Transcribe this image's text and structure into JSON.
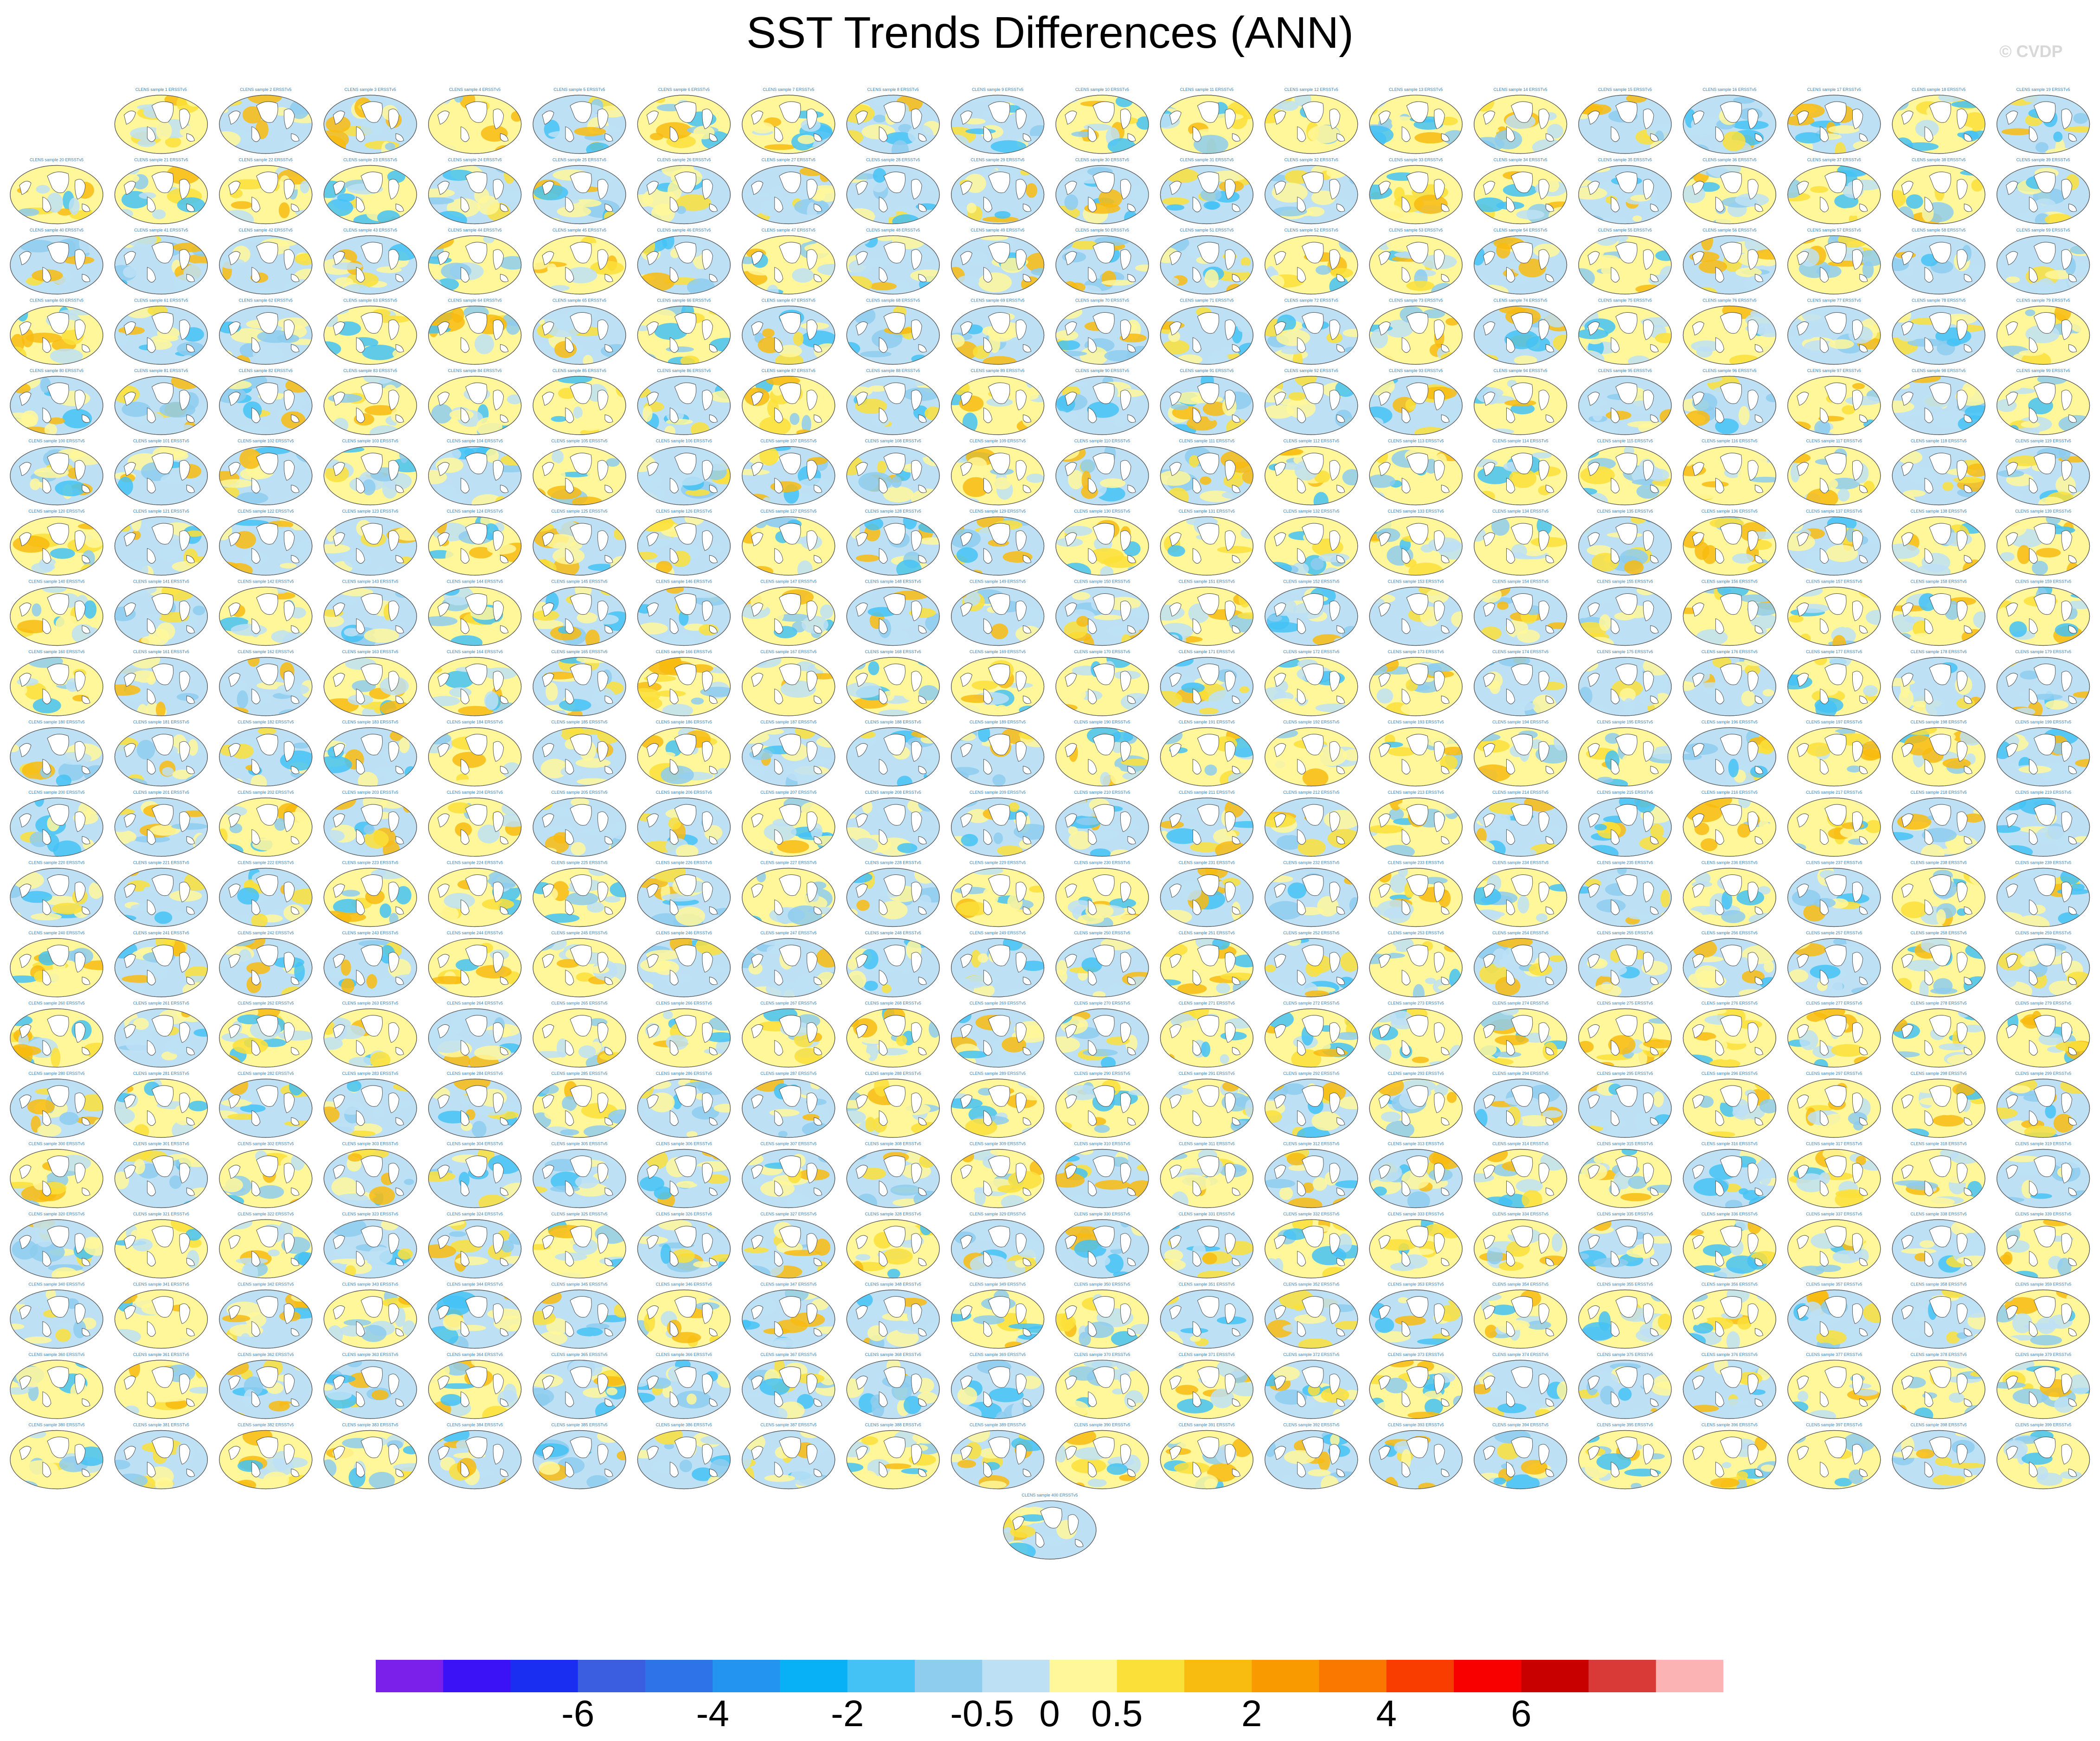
{
  "header": {
    "title": "SST Trends Differences (ANN)",
    "watermark": "© CVDP"
  },
  "chart_data": {
    "type": "heatmap",
    "title": "SST Trends Differences (ANN)",
    "panel_grid": {
      "rows": 20,
      "columns": 20,
      "extra_last_row": 1,
      "total_panels": 398
    },
    "panel_projection": "robinson",
    "panel_label_template": "CLENS sample {n} ERSSTv5",
    "colorbar": {
      "orientation": "horizontal",
      "placement": "bottom-center",
      "colors": [
        "#7b1fea",
        "#3a12f5",
        "#1a2ef2",
        "#3b5ee0",
        "#2f73e8",
        "#2394f0",
        "#08b0f5",
        "#45c2f5",
        "#8ecdee",
        "#bde0f4",
        "#fff79a",
        "#fbe03a",
        "#f8bb10",
        "#f99b00",
        "#fb7800",
        "#f93c00",
        "#f80000",
        "#c90000",
        "#d93a38",
        "#fbb3b3"
      ],
      "tick_labels": [
        "-6",
        "-4",
        "-2",
        "-0.5",
        "0",
        "0.5",
        "2",
        "4",
        "6"
      ]
    }
  }
}
